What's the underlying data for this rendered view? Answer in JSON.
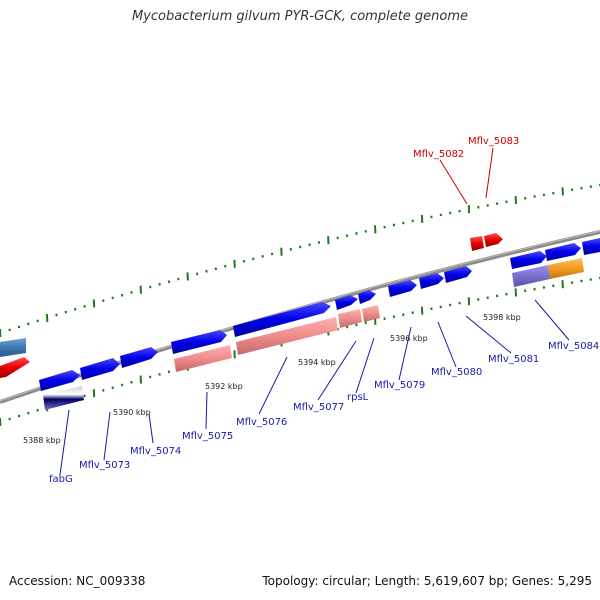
{
  "title": "Mycobacterium gilvum PYR-GCK, complete genome",
  "footer": {
    "accession": "Accession: NC_009338",
    "summary": "Topology: circular; Length: 5,619,607 bp; Genes: 5,295"
  },
  "colors": {
    "backbone": "#8a8a8a",
    "cds_forward": "#0000e6",
    "cds_reverse": "#e60000",
    "feature_salmon": "#f08c8c",
    "feature_purple": "#7b6fd0",
    "feature_orange": "#f09a20",
    "tick": "#1e7a1e",
    "label_blue": "#1a1aa6",
    "label_red": "#cc0000"
  },
  "scale_labels": [
    "5388 kbp",
    "5390 kbp",
    "5392 kbp",
    "5394 kbp",
    "5396 kbp",
    "5398 kbp"
  ],
  "gene_labels": [
    {
      "text": "fabG",
      "strand": "forward"
    },
    {
      "text": "Mflv_5073",
      "strand": "forward"
    },
    {
      "text": "Mflv_5074",
      "strand": "forward"
    },
    {
      "text": "Mflv_5075",
      "strand": "forward"
    },
    {
      "text": "Mflv_5076",
      "strand": "forward"
    },
    {
      "text": "Mflv_5077",
      "strand": "forward"
    },
    {
      "text": "rpsL",
      "strand": "forward"
    },
    {
      "text": "Mflv_5079",
      "strand": "forward"
    },
    {
      "text": "Mflv_5080",
      "strand": "forward"
    },
    {
      "text": "Mflv_5081",
      "strand": "forward"
    },
    {
      "text": "Mflv_5084",
      "strand": "forward"
    },
    {
      "text": "Mflv_5082",
      "strand": "reverse"
    },
    {
      "text": "Mflv_5083",
      "strand": "reverse"
    }
  ]
}
